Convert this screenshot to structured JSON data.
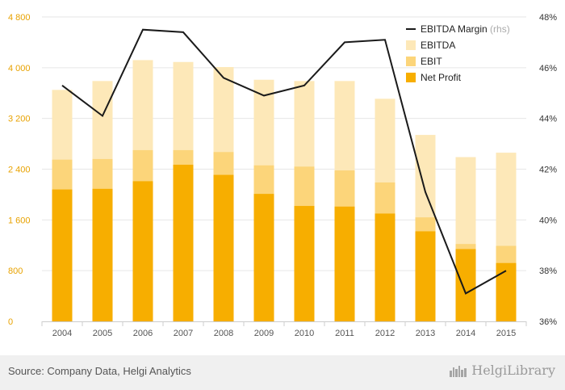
{
  "chart_data": {
    "type": "bar",
    "stacked": false,
    "categories": [
      "2004",
      "2005",
      "2006",
      "2007",
      "2008",
      "2009",
      "2010",
      "2011",
      "2012",
      "2013",
      "2014",
      "2015"
    ],
    "series": [
      {
        "name": "EBITDA",
        "color": "#fde8b8",
        "axis": "left",
        "values": [
          3650,
          3790,
          4120,
          4090,
          4010,
          3810,
          3790,
          3790,
          3510,
          2940,
          2590,
          2660
        ]
      },
      {
        "name": "EBIT",
        "color": "#fcd57a",
        "axis": "left",
        "values": [
          2550,
          2560,
          2700,
          2700,
          2670,
          2460,
          2440,
          2380,
          2190,
          1640,
          1220,
          1190
        ]
      },
      {
        "name": "Net Profit",
        "color": "#f7ae00",
        "axis": "left",
        "values": [
          2080,
          2090,
          2210,
          2470,
          2310,
          2010,
          1820,
          1810,
          1700,
          1420,
          1140,
          920
        ]
      },
      {
        "name": "EBITDA Margin",
        "name_suffix": "(rhs)",
        "color": "#1a1a1a",
        "axis": "right",
        "kind": "line",
        "values": [
          45.3,
          44.1,
          47.5,
          47.4,
          45.6,
          44.9,
          45.3,
          47.0,
          47.1,
          41.1,
          37.1,
          38.0
        ]
      }
    ],
    "y_left": {
      "min": 0,
      "max": 4800,
      "ticks": [
        "0",
        "800",
        "1 600",
        "2 400",
        "3 200",
        "4 000",
        "4 800"
      ],
      "tick_values": [
        0,
        800,
        1600,
        2400,
        3200,
        4000,
        4800
      ]
    },
    "y_right": {
      "min": 36,
      "max": 48,
      "ticks": [
        "36%",
        "38%",
        "40%",
        "42%",
        "44%",
        "46%",
        "48%"
      ],
      "tick_values": [
        36,
        38,
        40,
        42,
        44,
        46,
        48
      ]
    },
    "legend_position": "top-right",
    "grid": "horizontal",
    "colors": {
      "left_tick": "#e8a200",
      "right_tick": "#333333",
      "axis_line": "#cccccc",
      "grid": "#e6e6e6"
    }
  },
  "footer": {
    "source": "Source: Company Data, Helgi Analytics",
    "brand": "HelgiLibrary"
  }
}
